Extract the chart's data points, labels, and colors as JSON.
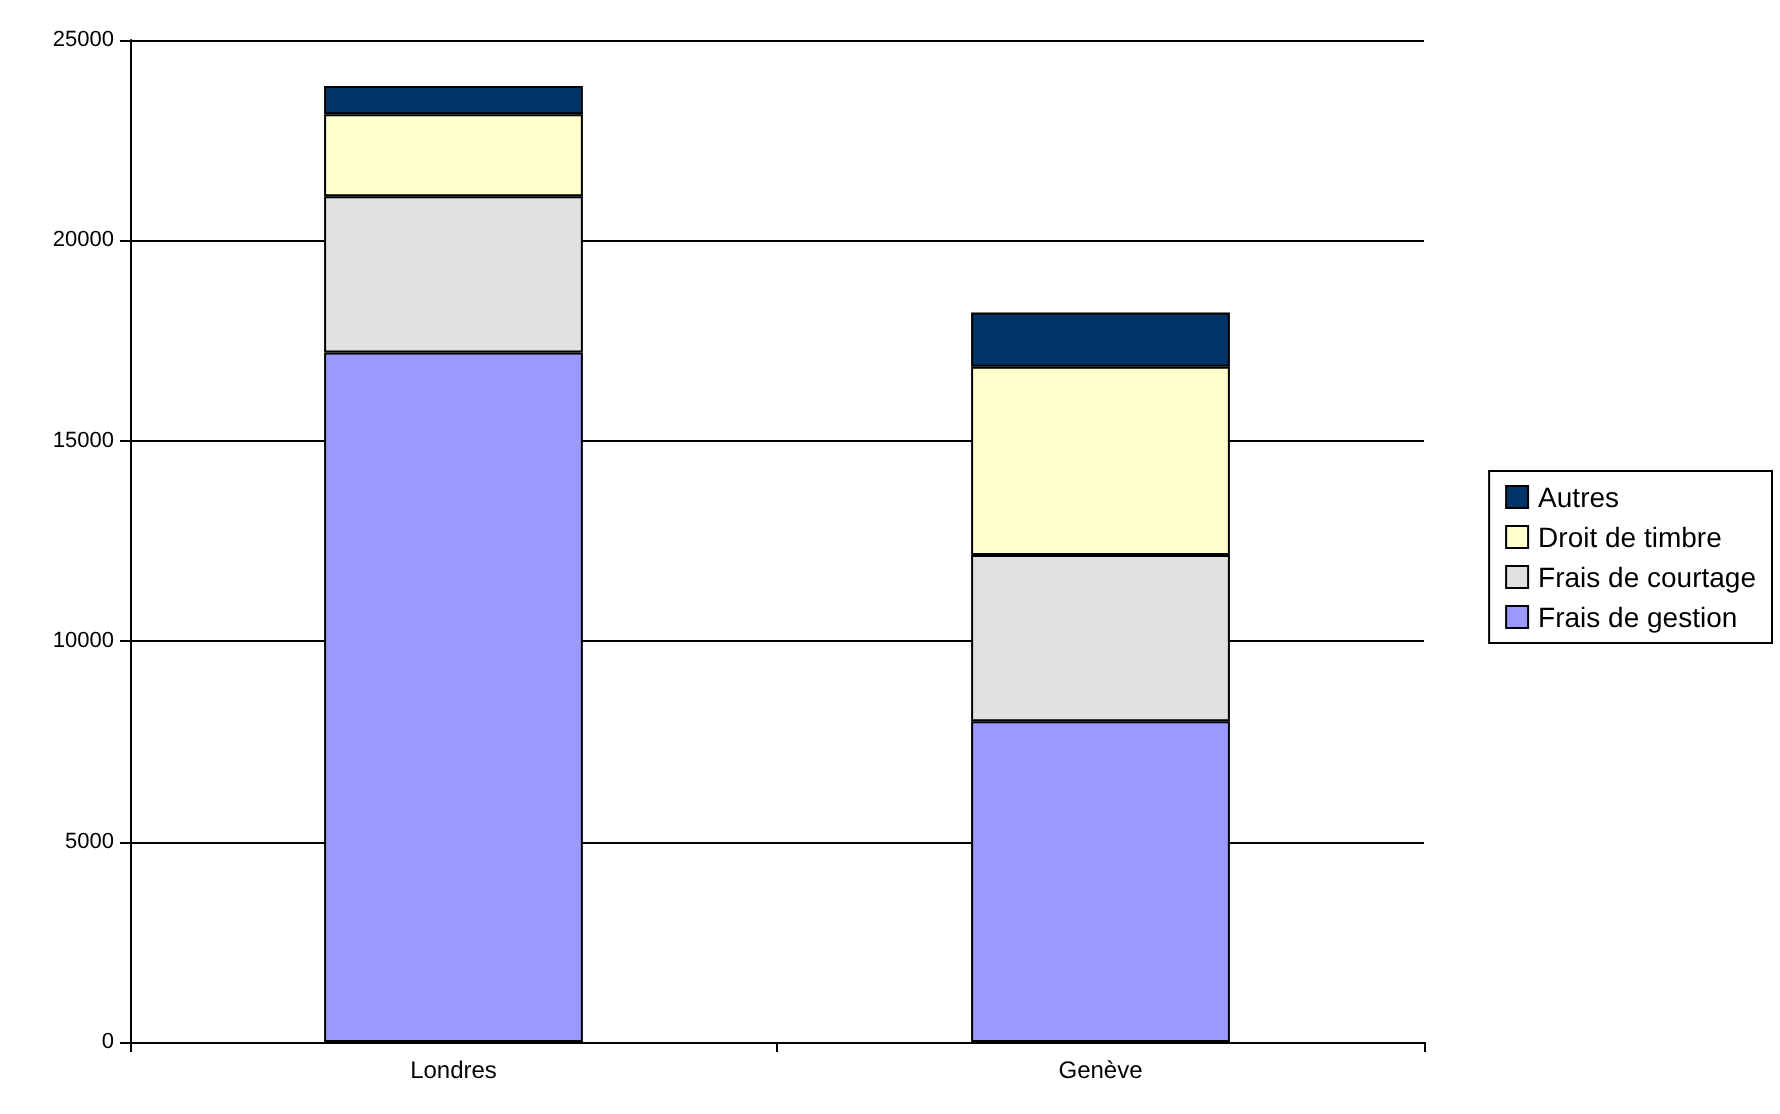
{
  "chart_data": {
    "type": "bar",
    "stacked": true,
    "categories": [
      "Londres",
      "Genève"
    ],
    "series": [
      {
        "name": "Frais de gestion",
        "color": "#9999ff",
        "values": [
          17200,
          8000
        ]
      },
      {
        "name": "Frais de courtage",
        "color": "#e0e0e0",
        "values": [
          3900,
          4150
        ]
      },
      {
        "name": "Droit de timbre",
        "color": "#ffffcc",
        "values": [
          2050,
          4700
        ]
      },
      {
        "name": "Autres",
        "color": "#003366",
        "values": [
          700,
          1350
        ]
      }
    ],
    "ylim": [
      0,
      25000
    ],
    "yticks": [
      0,
      5000,
      10000,
      15000,
      20000,
      25000
    ],
    "grid": "y",
    "legend": "right"
  }
}
